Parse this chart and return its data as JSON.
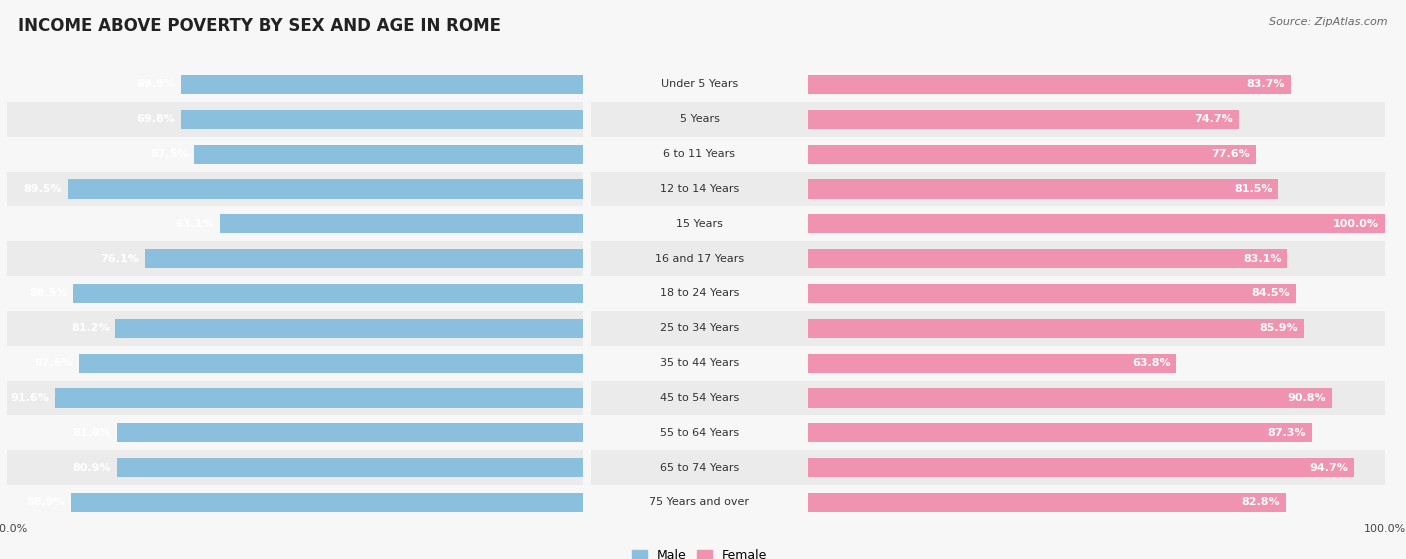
{
  "title": "INCOME ABOVE POVERTY BY SEX AND AGE IN ROME",
  "source": "Source: ZipAtlas.com",
  "categories": [
    "Under 5 Years",
    "5 Years",
    "6 to 11 Years",
    "12 to 14 Years",
    "15 Years",
    "16 and 17 Years",
    "18 to 24 Years",
    "25 to 34 Years",
    "35 to 44 Years",
    "45 to 54 Years",
    "55 to 64 Years",
    "65 to 74 Years",
    "75 Years and over"
  ],
  "male_values": [
    69.9,
    69.8,
    67.5,
    89.5,
    63.1,
    76.1,
    88.5,
    81.2,
    87.6,
    91.6,
    81.0,
    80.9,
    88.9
  ],
  "female_values": [
    83.7,
    74.7,
    77.6,
    81.5,
    100.0,
    83.1,
    84.5,
    85.9,
    63.8,
    90.8,
    87.3,
    94.7,
    82.8
  ],
  "male_color": "#8abfde",
  "female_color": "#f093b0",
  "bg_color": "#f7f7f7",
  "row_alt_color": "#ebebeb",
  "male_label": "Male",
  "female_label": "Female",
  "title_fontsize": 12,
  "label_fontsize": 8.5,
  "value_fontsize": 8,
  "legend_fontsize": 9,
  "source_fontsize": 8
}
